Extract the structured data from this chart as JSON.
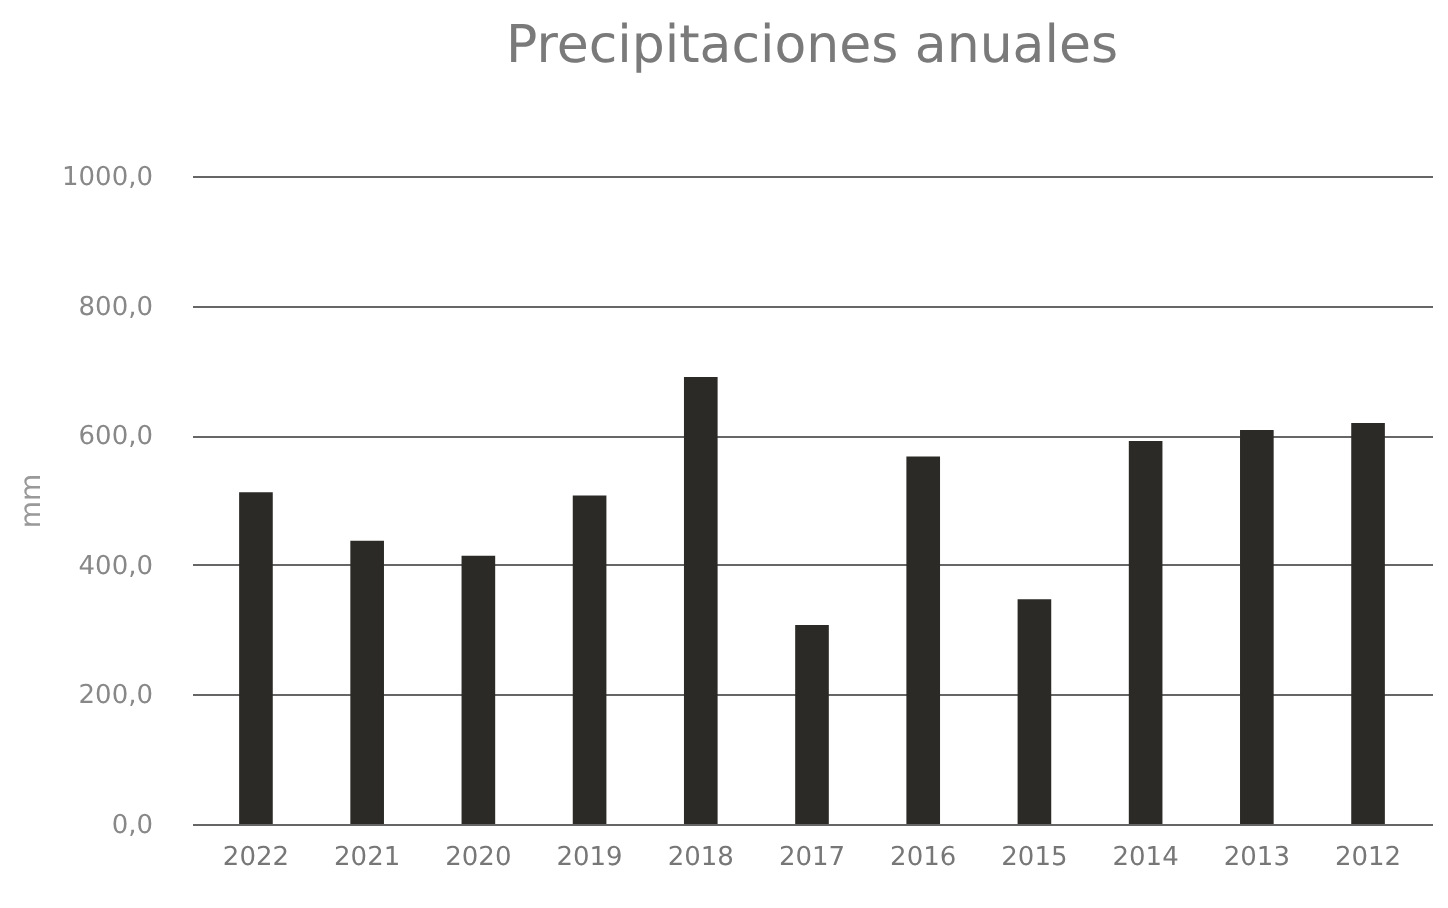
{
  "chart_data": {
    "type": "bar",
    "title": "Precipitaciones anuales",
    "ylabel": "mm",
    "categories": [
      "2022",
      "2021",
      "2020",
      "2019",
      "2018",
      "2017",
      "2016",
      "2015",
      "2014",
      "2013",
      "2012"
    ],
    "values": [
      512,
      437,
      414,
      507,
      690,
      307,
      567,
      347,
      591,
      608,
      619
    ],
    "color": "#2b2a26",
    "ylim": [
      0,
      1000
    ],
    "yticks": [
      {
        "value": 0,
        "label": "0,0"
      },
      {
        "value": 200,
        "label": "200,0"
      },
      {
        "value": 400,
        "label": "400,0"
      },
      {
        "value": 600,
        "label": "600,0"
      },
      {
        "value": 800,
        "label": "800,0"
      },
      {
        "value": 1000,
        "label": "1000,0"
      }
    ],
    "grid": "y"
  }
}
